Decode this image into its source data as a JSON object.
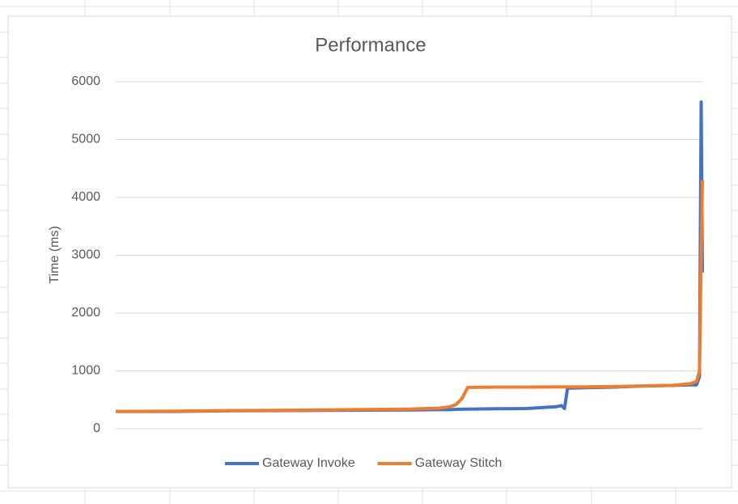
{
  "chart_data": {
    "type": "line",
    "title": "Performance",
    "ylabel": "Time (ms)",
    "x": [
      0,
      10,
      20,
      30,
      40,
      50,
      55,
      57,
      58,
      59,
      60,
      65,
      70,
      75,
      76,
      76.5,
      77,
      80,
      85,
      90,
      95,
      98,
      99,
      99.5,
      99.8,
      100
    ],
    "series": [
      {
        "name": "Gateway Invoke",
        "color": "#4472c4",
        "values": [
          300,
          300,
          310,
          315,
          320,
          325,
          330,
          330,
          335,
          340,
          340,
          345,
          350,
          380,
          400,
          350,
          700,
          710,
          720,
          740,
          750,
          760,
          760,
          900,
          5650,
          2700
        ]
      },
      {
        "name": "Gateway Stitch",
        "color": "#ed7d31",
        "values": [
          300,
          305,
          315,
          320,
          330,
          340,
          355,
          380,
          420,
          520,
          715,
          720,
          720,
          725,
          725,
          725,
          725,
          725,
          730,
          740,
          750,
          780,
          820,
          1000,
          3000,
          4300
        ]
      }
    ],
    "xlim": [
      0,
      100
    ],
    "ylim": [
      0,
      6000
    ],
    "yticks": [
      0,
      1000,
      2000,
      3000,
      4000,
      5000,
      6000
    ],
    "grid": true,
    "legend": "bottom"
  }
}
